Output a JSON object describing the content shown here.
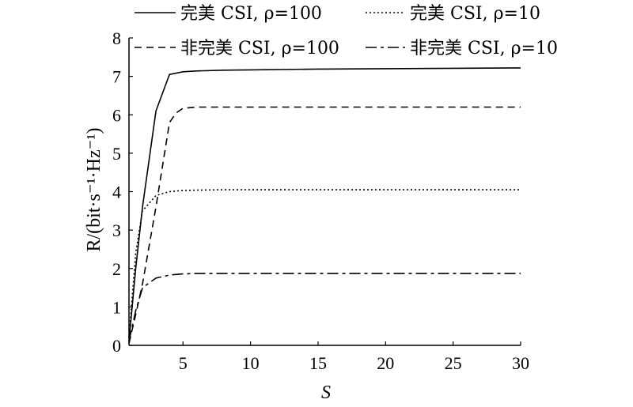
{
  "chart_data": {
    "type": "line",
    "title": "",
    "xlabel": "S",
    "ylabel": "R/(bit·s⁻¹·Hz⁻¹)",
    "xlim": [
      1,
      30
    ],
    "ylim": [
      0,
      8
    ],
    "x_ticks": [
      5,
      10,
      15,
      20,
      25,
      30
    ],
    "y_ticks": [
      0,
      1,
      2,
      3,
      4,
      5,
      6,
      7,
      8
    ],
    "grid": false,
    "legend_position": "top",
    "series": [
      {
        "name": "完美  CSI, ρ=100",
        "style": "solid",
        "x": [
          1,
          1.5,
          2,
          3,
          4,
          5,
          6,
          8,
          10,
          15,
          20,
          25,
          30
        ],
        "y": [
          0.1,
          2.0,
          3.6,
          6.1,
          7.05,
          7.12,
          7.14,
          7.16,
          7.17,
          7.19,
          7.2,
          7.21,
          7.22
        ]
      },
      {
        "name": "完美  CSI, ρ=10",
        "style": "dotted",
        "x": [
          1,
          1.5,
          2,
          3,
          4,
          5,
          6,
          8,
          10,
          15,
          20,
          25,
          30
        ],
        "y": [
          0.2,
          2.4,
          3.5,
          3.9,
          4.0,
          4.03,
          4.04,
          4.05,
          4.05,
          4.05,
          4.05,
          4.05,
          4.05
        ]
      },
      {
        "name": "非完美  CSI, ρ=100",
        "style": "dashed",
        "x": [
          1,
          1.5,
          2,
          3,
          4,
          4.5,
          5,
          6,
          8,
          10,
          15,
          20,
          25,
          30
        ],
        "y": [
          0.05,
          0.8,
          1.6,
          3.6,
          5.8,
          6.05,
          6.17,
          6.2,
          6.2,
          6.2,
          6.2,
          6.2,
          6.2,
          6.2
        ]
      },
      {
        "name": "非完美  CSI, ρ=10",
        "style": "dashdot",
        "x": [
          1,
          1.5,
          2,
          3,
          4,
          5,
          6,
          8,
          10,
          15,
          20,
          25,
          30
        ],
        "y": [
          0.1,
          0.9,
          1.5,
          1.75,
          1.83,
          1.86,
          1.87,
          1.87,
          1.87,
          1.87,
          1.87,
          1.87,
          1.87
        ]
      }
    ]
  }
}
